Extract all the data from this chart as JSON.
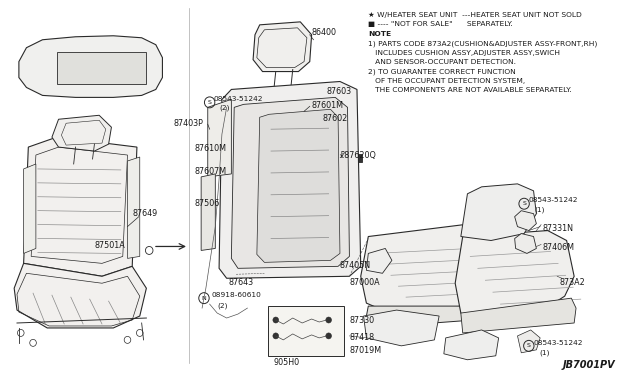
{
  "background_color": "#ffffff",
  "diagram_id": "JB7001PV",
  "notes_line1": "★ W/HEATER SEAT UNIT  ---HEATER SEAT UNIT NOT SOLD",
  "notes_line2": "■ ---- \"NOT FOR SALE\"      SEPARATELY.",
  "notes_line3": "NOTE",
  "notes_line4": "1) PARTS CODE 873A2(CUSHION&ADJUSTER ASSY-FRONT,RH)",
  "notes_line5": "   INCLUDES CUSHION ASSY,ADJUSTER ASSY,SWICH",
  "notes_line6": "   AND SENSOR-OCCUPANT DETECTION.",
  "notes_line7": "2) TO GUARANTEE CORRECT FUNCTION",
  "notes_line8": "   OF THE OCCUPANT DETECTION SYSTEM,",
  "notes_line9": "   THE COMPONENTS ARE NOT AVAILABLE SEPARATELY.",
  "text_color": "#1a1a1a",
  "line_color": "#2a2a2a",
  "font_size": 5.8,
  "note_font_size": 5.4
}
